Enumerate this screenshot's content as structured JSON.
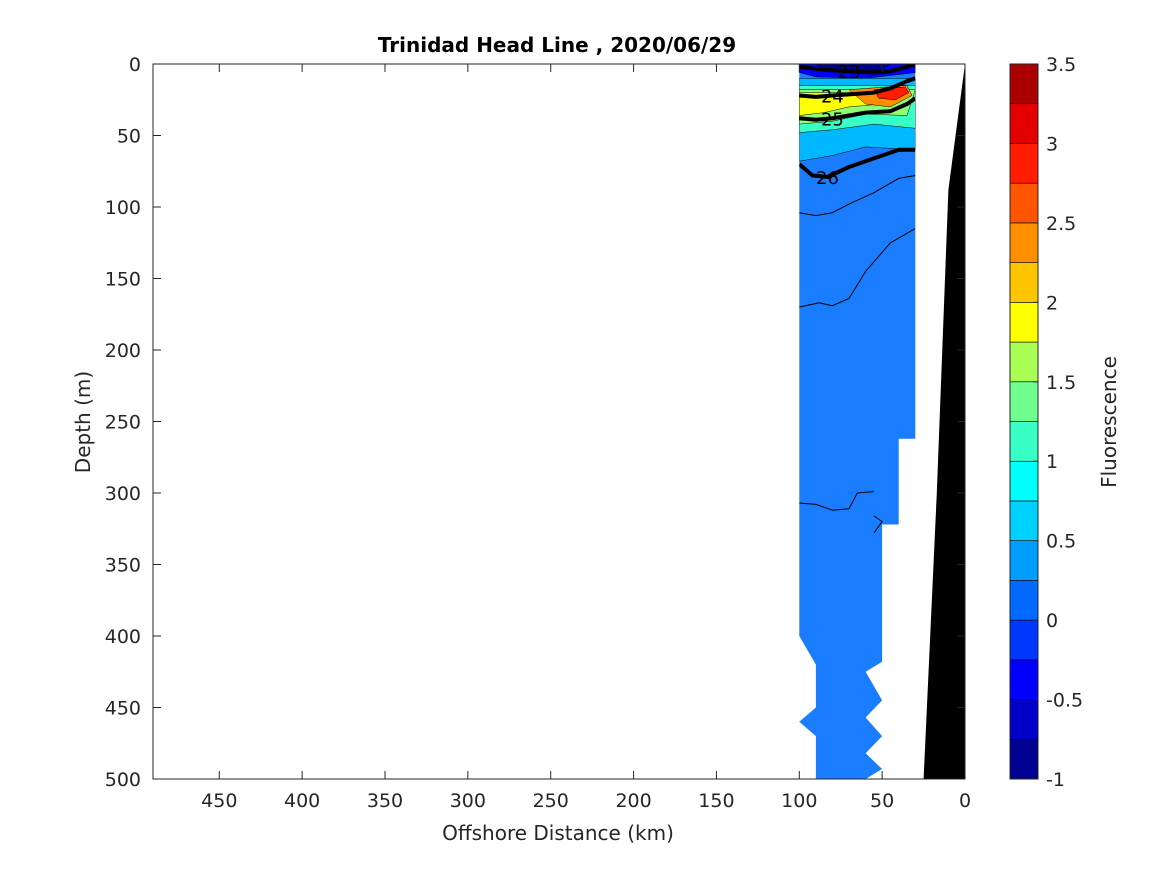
{
  "chart_data": {
    "type": "contour",
    "title": "Trinidad Head Line , 2020/06/29",
    "xlabel": "Offshore Distance (km)",
    "ylabel": "Depth (m)",
    "colorbar_label": "Fluorescence",
    "xlim": [
      490,
      0
    ],
    "ylim": [
      0,
      500
    ],
    "x_reversed": true,
    "y_reversed": true,
    "x_ticks": [
      450,
      400,
      350,
      300,
      250,
      200,
      150,
      100,
      50,
      0
    ],
    "y_ticks": [
      0,
      50,
      100,
      150,
      200,
      250,
      300,
      350,
      400,
      450,
      500
    ],
    "colorbar": {
      "clim": [
        -1,
        3.5
      ],
      "ticks": [
        "3.5",
        "3",
        "2.5",
        "2",
        "1.5",
        "1",
        "0.5",
        "0",
        "-0.5",
        "-1"
      ],
      "colormap": "jet",
      "levels": [
        {
          "from": -1.0,
          "to": -0.75,
          "color": "#000091"
        },
        {
          "from": -0.75,
          "to": -0.5,
          "color": "#0000c8"
        },
        {
          "from": -0.5,
          "to": -0.25,
          "color": "#0000ff"
        },
        {
          "from": -0.25,
          "to": 0.0,
          "color": "#0037ff"
        },
        {
          "from": 0.0,
          "to": 0.25,
          "color": "#006aff"
        },
        {
          "from": 0.25,
          "to": 0.5,
          "color": "#009fff"
        },
        {
          "from": 0.5,
          "to": 0.75,
          "color": "#00d2ff"
        },
        {
          "from": 0.75,
          "to": 1.0,
          "color": "#00ffff"
        },
        {
          "from": 1.0,
          "to": 1.25,
          "color": "#38ffc6"
        },
        {
          "from": 1.25,
          "to": 1.5,
          "color": "#6eff8e"
        },
        {
          "from": 1.5,
          "to": 1.75,
          "color": "#aaff55"
        },
        {
          "from": 1.75,
          "to": 2.0,
          "color": "#ffff00"
        },
        {
          "from": 2.0,
          "to": 2.25,
          "color": "#ffc600"
        },
        {
          "from": 2.25,
          "to": 2.5,
          "color": "#ff8e00"
        },
        {
          "from": 2.5,
          "to": 2.75,
          "color": "#ff5500"
        },
        {
          "from": 2.75,
          "to": 3.0,
          "color": "#ff1c00"
        },
        {
          "from": 3.0,
          "to": 3.25,
          "color": "#e40000"
        },
        {
          "from": 3.25,
          "to": 3.5,
          "color": "#aa0000"
        }
      ]
    },
    "data_region": {
      "background_value": 0.1,
      "background_color": "#1a7cff",
      "outline": [
        [
          100,
          0
        ],
        [
          30,
          0
        ],
        [
          30,
          262
        ],
        [
          40,
          262
        ],
        [
          40,
          322
        ],
        [
          50,
          322
        ],
        [
          50,
          418
        ],
        [
          60,
          425
        ],
        [
          50,
          445
        ],
        [
          60,
          457
        ],
        [
          50,
          470
        ],
        [
          60,
          482
        ],
        [
          50,
          493
        ],
        [
          60,
          500
        ],
        [
          90,
          500
        ],
        [
          90,
          470
        ],
        [
          100,
          460
        ],
        [
          90,
          450
        ],
        [
          90,
          420
        ],
        [
          100,
          400
        ]
      ]
    },
    "surface_bands": [
      {
        "value": 0.6,
        "color": "#00b8ff",
        "polygon": [
          [
            100,
            10
          ],
          [
            30,
            10
          ],
          [
            30,
            60
          ],
          [
            60,
            58
          ],
          [
            80,
            64
          ],
          [
            100,
            68
          ]
        ]
      },
      {
        "value": 1.1,
        "color": "#38ffc6",
        "polygon": [
          [
            100,
            15
          ],
          [
            30,
            15
          ],
          [
            30,
            45
          ],
          [
            55,
            42
          ],
          [
            80,
            46
          ],
          [
            100,
            48
          ]
        ]
      },
      {
        "value": 1.6,
        "color": "#8eff70",
        "polygon": [
          [
            100,
            18
          ],
          [
            30,
            18
          ],
          [
            35,
            36
          ],
          [
            60,
            35
          ],
          [
            80,
            40
          ],
          [
            100,
            42
          ]
        ]
      },
      {
        "value": 2.1,
        "color": "#ffff00",
        "polygon": [
          [
            100,
            20
          ],
          [
            40,
            20
          ],
          [
            50,
            28
          ],
          [
            70,
            30
          ],
          [
            85,
            34
          ],
          [
            100,
            36
          ]
        ]
      },
      {
        "value": 2.6,
        "color": "#ff8e00",
        "polygon": [
          [
            70,
            18
          ],
          [
            35,
            15
          ],
          [
            32,
            22
          ],
          [
            45,
            30
          ],
          [
            60,
            28
          ]
        ]
      },
      {
        "value": 3.1,
        "color": "#ff1c00",
        "polygon": [
          [
            55,
            18
          ],
          [
            36,
            16
          ],
          [
            34,
            20
          ],
          [
            42,
            25
          ],
          [
            52,
            24
          ]
        ]
      },
      {
        "value": -0.6,
        "color": "#0000ff",
        "polygon": [
          [
            100,
            0
          ],
          [
            30,
            0
          ],
          [
            30,
            6
          ],
          [
            60,
            10
          ],
          [
            90,
            9
          ],
          [
            100,
            6
          ]
        ]
      },
      {
        "value": -0.9,
        "color": "#000091",
        "polygon": [
          [
            90,
            0
          ],
          [
            45,
            0
          ],
          [
            50,
            4
          ],
          [
            70,
            6
          ],
          [
            85,
            4
          ]
        ]
      }
    ],
    "density_contours": [
      {
        "label": "23",
        "bold": true,
        "points": [
          [
            100,
            2
          ],
          [
            85,
            4
          ],
          [
            70,
            5
          ],
          [
            55,
            6
          ],
          [
            45,
            5
          ],
          [
            35,
            2
          ],
          [
            30,
            0
          ]
        ]
      },
      {
        "label": "24",
        "bold": true,
        "points": [
          [
            100,
            22
          ],
          [
            90,
            23
          ],
          [
            80,
            22
          ],
          [
            55,
            20
          ],
          [
            45,
            17
          ],
          [
            35,
            12
          ],
          [
            30,
            10
          ]
        ]
      },
      {
        "label": "25",
        "bold": true,
        "points": [
          [
            100,
            38
          ],
          [
            90,
            39
          ],
          [
            80,
            38
          ],
          [
            60,
            34
          ],
          [
            45,
            33
          ],
          [
            35,
            28
          ],
          [
            30,
            24
          ]
        ]
      },
      {
        "label": "26",
        "bold": true,
        "points": [
          [
            100,
            70
          ],
          [
            92,
            78
          ],
          [
            83,
            79
          ],
          [
            70,
            72
          ],
          [
            55,
            66
          ],
          [
            40,
            60
          ],
          [
            30,
            60
          ]
        ]
      },
      {
        "label": "",
        "bold": false,
        "points": [
          [
            100,
            104
          ],
          [
            90,
            106
          ],
          [
            80,
            104
          ],
          [
            70,
            98
          ],
          [
            55,
            90
          ],
          [
            40,
            80
          ],
          [
            30,
            78
          ]
        ]
      },
      {
        "label": "",
        "bold": false,
        "points": [
          [
            100,
            170
          ],
          [
            88,
            167
          ],
          [
            80,
            169
          ],
          [
            70,
            164
          ],
          [
            60,
            145
          ],
          [
            45,
            125
          ],
          [
            30,
            115
          ]
        ]
      },
      {
        "label": "",
        "bold": false,
        "points": [
          [
            100,
            307
          ],
          [
            90,
            308
          ],
          [
            80,
            312
          ],
          [
            70,
            311
          ],
          [
            65,
            300
          ],
          [
            55,
            299
          ]
        ]
      },
      {
        "label": "",
        "bold": false,
        "points": [
          [
            55,
            316
          ],
          [
            50,
            320
          ],
          [
            55,
            328
          ]
        ]
      }
    ],
    "bathymetry": {
      "color": "#000000",
      "polygon": [
        [
          0,
          0
        ],
        [
          10,
          88
        ],
        [
          17,
          300
        ],
        [
          25,
          500
        ],
        [
          0,
          500
        ]
      ]
    }
  }
}
